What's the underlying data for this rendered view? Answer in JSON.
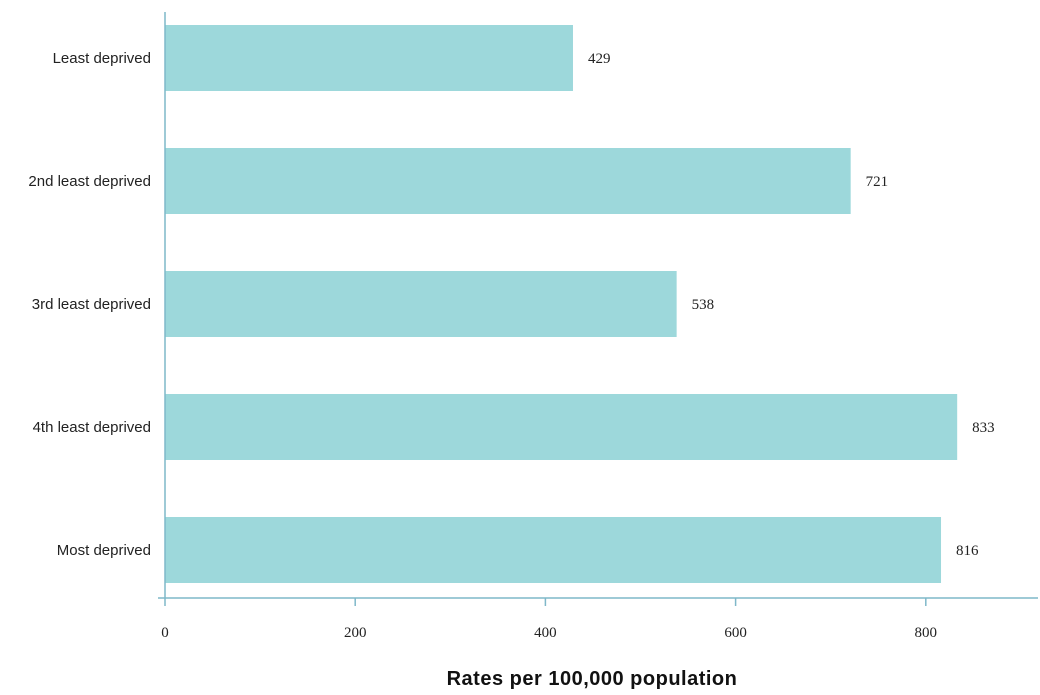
{
  "chart_data": {
    "type": "bar",
    "orientation": "horizontal",
    "categories": [
      "Least deprived",
      "2nd least deprived",
      "3rd least deprived",
      "4th least deprived",
      "Most deprived"
    ],
    "values": [
      429,
      721,
      538,
      833,
      816
    ],
    "data_labels": [
      "429",
      "721",
      "538",
      "833",
      "816"
    ],
    "title": "",
    "xlabel": "Rates per 100,000 population",
    "ylabel": "",
    "xlim": [
      0,
      900
    ],
    "xticks": [
      0,
      200,
      400,
      600,
      800
    ],
    "xtick_labels": [
      "0",
      "200",
      "400",
      "600",
      "800"
    ],
    "grid": false,
    "colors": {
      "bar": "#9dd8db",
      "axis": "#7fb8c9"
    }
  }
}
